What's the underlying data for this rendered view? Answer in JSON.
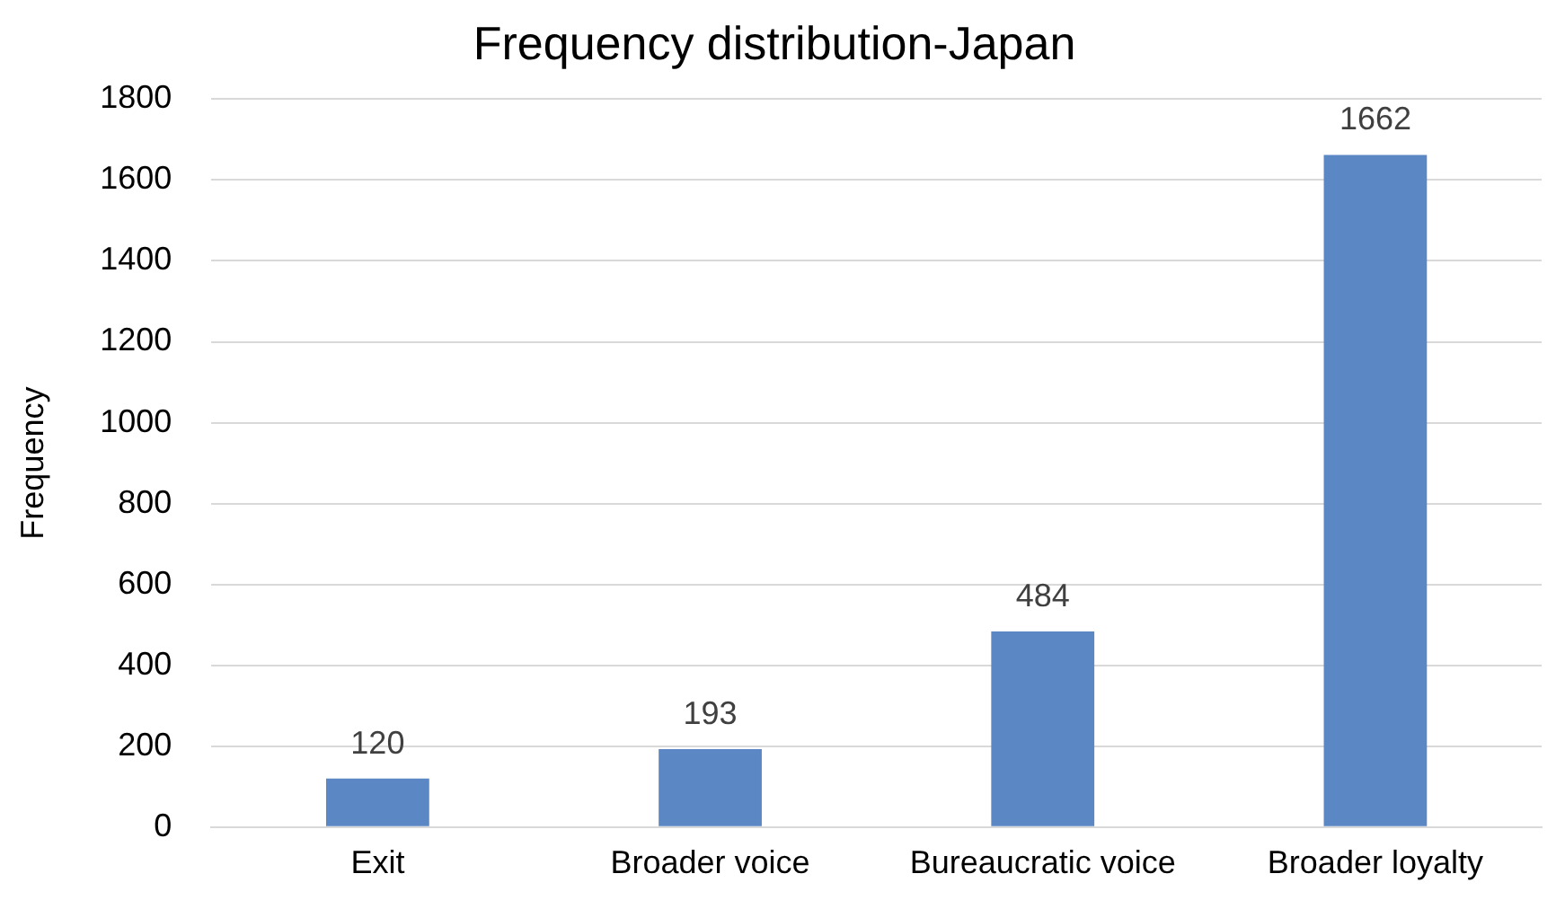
{
  "chart_data": {
    "type": "bar",
    "title": "Frequency distribution-Japan",
    "ylabel": "Frequency",
    "categories": [
      "Exit",
      "Broader voice",
      "Bureaucratic voice",
      "Broader loyalty"
    ],
    "values": [
      120,
      193,
      484,
      1662
    ],
    "color": "#5b87c4",
    "ylim": [
      0,
      1800
    ],
    "yticks": [
      0,
      200,
      400,
      600,
      800,
      1000,
      1200,
      1400,
      1600,
      1800
    ],
    "grid": "y",
    "data_labels": true,
    "legend": false
  }
}
